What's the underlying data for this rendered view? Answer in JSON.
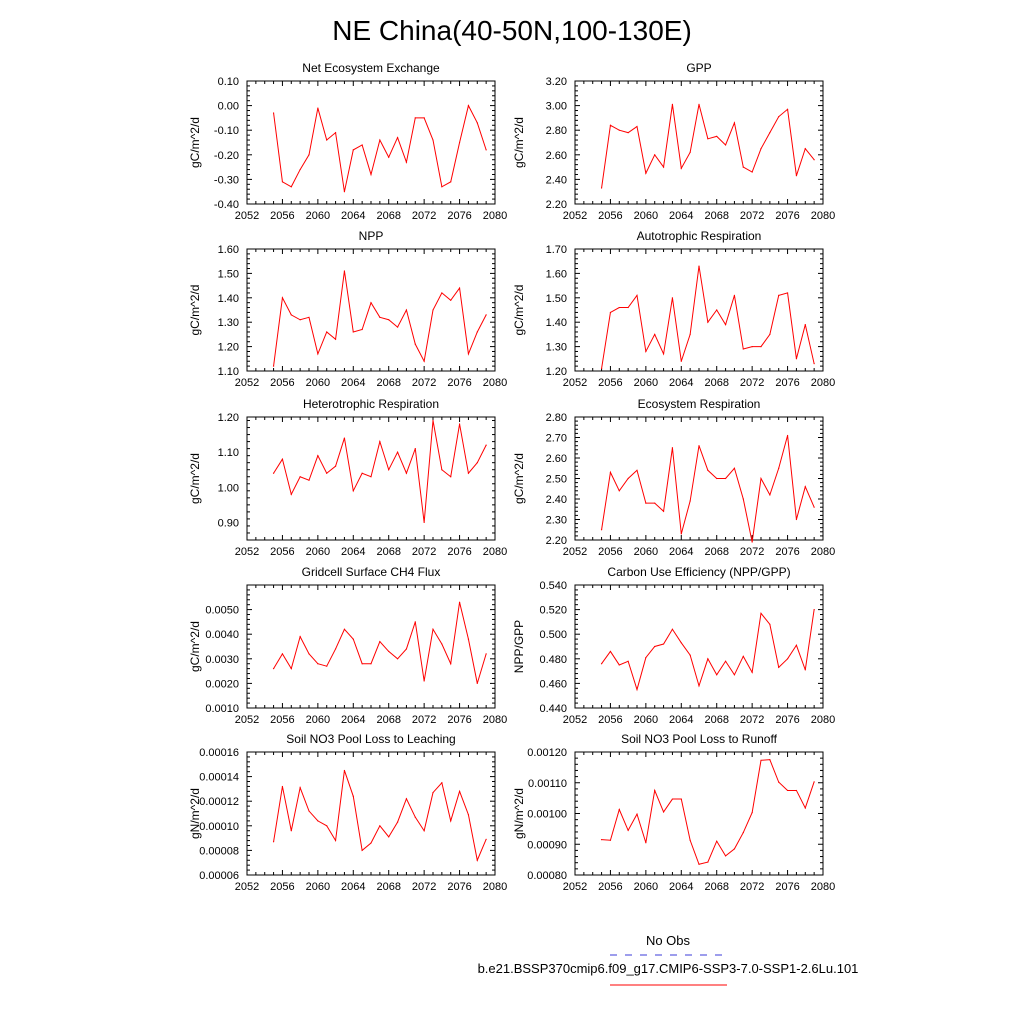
{
  "title": "NE China(40-50N,100-130E)",
  "legend": {
    "position": "bottom-right",
    "entries": [
      {
        "label": "No Obs",
        "color": "#3b3bd9",
        "dash": true
      },
      {
        "label": "b.e21.BSSP370cmip6.f09_g17.CMIP6-SSP3-7.0-SSP1-2.6Lu.101",
        "color": "#ff0000",
        "dash": false
      }
    ]
  },
  "series_color": "#ff0000",
  "chart_data": [
    {
      "type": "line",
      "title": "Net Ecosystem Exchange",
      "ylabel": "gC/m^2/d",
      "xlim": [
        2052,
        2080
      ],
      "ylim": [
        -0.4,
        0.1
      ],
      "xticks": [
        "2052",
        "2056",
        "2060",
        "2064",
        "2068",
        "2072",
        "2076",
        "2080"
      ],
      "yticks": [
        "-0.40",
        "-0.30",
        "-0.20",
        "-0.10",
        "0.00",
        "0.10"
      ],
      "x": [
        2055,
        2056,
        2057,
        2058,
        2059,
        2060,
        2061,
        2062,
        2063,
        2064,
        2065,
        2066,
        2067,
        2068,
        2069,
        2070,
        2071,
        2072,
        2073,
        2074,
        2075,
        2076,
        2077,
        2078,
        2079
      ],
      "values": [
        -0.03,
        -0.31,
        -0.33,
        -0.26,
        -0.2,
        -0.01,
        -0.14,
        -0.11,
        -0.35,
        -0.18,
        -0.16,
        -0.28,
        -0.14,
        -0.21,
        -0.13,
        -0.23,
        -0.05,
        -0.05,
        -0.14,
        -0.33,
        -0.31,
        -0.15,
        0.0,
        -0.07,
        -0.18
      ]
    },
    {
      "type": "line",
      "title": "GPP",
      "ylabel": "gC/m^2/d",
      "xlim": [
        2052,
        2080
      ],
      "ylim": [
        2.2,
        3.2
      ],
      "xticks": [
        "2052",
        "2056",
        "2060",
        "2064",
        "2068",
        "2072",
        "2076",
        "2080"
      ],
      "yticks": [
        "2.20",
        "2.40",
        "2.60",
        "2.80",
        "3.00",
        "3.20"
      ],
      "x": [
        2055,
        2056,
        2057,
        2058,
        2059,
        2060,
        2061,
        2062,
        2063,
        2064,
        2065,
        2066,
        2067,
        2068,
        2069,
        2070,
        2071,
        2072,
        2073,
        2074,
        2075,
        2076,
        2077,
        2078,
        2079
      ],
      "values": [
        2.33,
        2.84,
        2.8,
        2.78,
        2.83,
        2.45,
        2.6,
        2.5,
        3.01,
        2.49,
        2.62,
        3.01,
        2.73,
        2.75,
        2.68,
        2.86,
        2.5,
        2.46,
        2.65,
        2.78,
        2.91,
        2.97,
        2.43,
        2.65,
        2.56
      ]
    },
    {
      "type": "line",
      "title": "NPP",
      "ylabel": "gC/m^2/d",
      "xlim": [
        2052,
        2080
      ],
      "ylim": [
        1.1,
        1.6
      ],
      "xticks": [
        "2052",
        "2056",
        "2060",
        "2064",
        "2068",
        "2072",
        "2076",
        "2080"
      ],
      "yticks": [
        "1.10",
        "1.20",
        "1.30",
        "1.40",
        "1.50",
        "1.60"
      ],
      "x": [
        2055,
        2056,
        2057,
        2058,
        2059,
        2060,
        2061,
        2062,
        2063,
        2064,
        2065,
        2066,
        2067,
        2068,
        2069,
        2070,
        2071,
        2072,
        2073,
        2074,
        2075,
        2076,
        2077,
        2078,
        2079
      ],
      "values": [
        1.12,
        1.4,
        1.33,
        1.31,
        1.32,
        1.17,
        1.26,
        1.23,
        1.51,
        1.26,
        1.27,
        1.38,
        1.32,
        1.31,
        1.28,
        1.35,
        1.21,
        1.14,
        1.35,
        1.42,
        1.39,
        1.44,
        1.17,
        1.26,
        1.33
      ]
    },
    {
      "type": "line",
      "title": "Autotrophic Respiration",
      "ylabel": "gC/m^2/d",
      "xlim": [
        2052,
        2080
      ],
      "ylim": [
        1.2,
        1.7
      ],
      "xticks": [
        "2052",
        "2056",
        "2060",
        "2064",
        "2068",
        "2072",
        "2076",
        "2080"
      ],
      "yticks": [
        "1.20",
        "1.30",
        "1.40",
        "1.50",
        "1.60",
        "1.70"
      ],
      "x": [
        2055,
        2056,
        2057,
        2058,
        2059,
        2060,
        2061,
        2062,
        2063,
        2064,
        2065,
        2066,
        2067,
        2068,
        2069,
        2070,
        2071,
        2072,
        2073,
        2074,
        2075,
        2076,
        2077,
        2078,
        2079
      ],
      "values": [
        1.21,
        1.44,
        1.46,
        1.46,
        1.51,
        1.28,
        1.35,
        1.27,
        1.5,
        1.24,
        1.35,
        1.63,
        1.4,
        1.45,
        1.39,
        1.51,
        1.29,
        1.3,
        1.3,
        1.35,
        1.51,
        1.52,
        1.25,
        1.39,
        1.23
      ]
    },
    {
      "type": "line",
      "title": "Heterotrophic Respiration",
      "ylabel": "gC/m^2/d",
      "xlim": [
        2052,
        2080
      ],
      "ylim": [
        0.85,
        1.2
      ],
      "xticks": [
        "2052",
        "2056",
        "2060",
        "2064",
        "2068",
        "2072",
        "2076",
        "2080"
      ],
      "yticks": [
        "0.90",
        "1.00",
        "1.10",
        "1.20"
      ],
      "x": [
        2055,
        2056,
        2057,
        2058,
        2059,
        2060,
        2061,
        2062,
        2063,
        2064,
        2065,
        2066,
        2067,
        2068,
        2069,
        2070,
        2071,
        2072,
        2073,
        2074,
        2075,
        2076,
        2077,
        2078,
        2079
      ],
      "values": [
        1.04,
        1.08,
        0.98,
        1.03,
        1.02,
        1.09,
        1.04,
        1.06,
        1.14,
        0.99,
        1.04,
        1.03,
        1.13,
        1.05,
        1.1,
        1.04,
        1.11,
        0.9,
        1.19,
        1.05,
        1.03,
        1.18,
        1.04,
        1.07,
        1.12
      ]
    },
    {
      "type": "line",
      "title": "Ecosystem Respiration",
      "ylabel": "gC/m^2/d",
      "xlim": [
        2052,
        2080
      ],
      "ylim": [
        2.2,
        2.8
      ],
      "xticks": [
        "2052",
        "2056",
        "2060",
        "2064",
        "2068",
        "2072",
        "2076",
        "2080"
      ],
      "yticks": [
        "2.20",
        "2.30",
        "2.40",
        "2.50",
        "2.60",
        "2.70",
        "2.80"
      ],
      "x": [
        2055,
        2056,
        2057,
        2058,
        2059,
        2060,
        2061,
        2062,
        2063,
        2064,
        2065,
        2066,
        2067,
        2068,
        2069,
        2070,
        2071,
        2072,
        2073,
        2074,
        2075,
        2076,
        2077,
        2078,
        2079
      ],
      "values": [
        2.25,
        2.53,
        2.44,
        2.5,
        2.54,
        2.38,
        2.38,
        2.34,
        2.65,
        2.23,
        2.39,
        2.66,
        2.54,
        2.5,
        2.5,
        2.55,
        2.4,
        2.19,
        2.5,
        2.42,
        2.55,
        2.71,
        2.3,
        2.46,
        2.36
      ]
    },
    {
      "type": "line",
      "title": "Gridcell Surface CH4 Flux",
      "ylabel": "gC/m^2/d",
      "xlim": [
        2052,
        2080
      ],
      "ylim": [
        0.001,
        0.006
      ],
      "xticks": [
        "2052",
        "2056",
        "2060",
        "2064",
        "2068",
        "2072",
        "2076",
        "2080"
      ],
      "yticks": [
        "0.0010",
        "0.0020",
        "0.0030",
        "0.0040",
        "0.0050"
      ],
      "x": [
        2055,
        2056,
        2057,
        2058,
        2059,
        2060,
        2061,
        2062,
        2063,
        2064,
        2065,
        2066,
        2067,
        2068,
        2069,
        2070,
        2071,
        2072,
        2073,
        2074,
        2075,
        2076,
        2077,
        2078,
        2079
      ],
      "values": [
        0.0026,
        0.0032,
        0.0026,
        0.0039,
        0.0032,
        0.0028,
        0.0027,
        0.0034,
        0.0042,
        0.0038,
        0.0028,
        0.0028,
        0.0037,
        0.0033,
        0.003,
        0.0034,
        0.0045,
        0.0021,
        0.0042,
        0.0036,
        0.0028,
        0.0053,
        0.0038,
        0.002,
        0.0032
      ]
    },
    {
      "type": "line",
      "title": "Carbon Use Efficiency (NPP/GPP)",
      "ylabel": "NPP/GPP",
      "xlim": [
        2052,
        2080
      ],
      "ylim": [
        0.44,
        0.54
      ],
      "xticks": [
        "2052",
        "2056",
        "2060",
        "2064",
        "2068",
        "2072",
        "2076",
        "2080"
      ],
      "yticks": [
        "0.440",
        "0.460",
        "0.480",
        "0.500",
        "0.520",
        "0.540"
      ],
      "x": [
        2055,
        2056,
        2057,
        2058,
        2059,
        2060,
        2061,
        2062,
        2063,
        2064,
        2065,
        2066,
        2067,
        2068,
        2069,
        2070,
        2071,
        2072,
        2073,
        2074,
        2075,
        2076,
        2077,
        2078,
        2079
      ],
      "values": [
        0.476,
        0.486,
        0.475,
        0.478,
        0.455,
        0.481,
        0.49,
        0.492,
        0.504,
        0.493,
        0.483,
        0.458,
        0.48,
        0.467,
        0.478,
        0.467,
        0.482,
        0.469,
        0.517,
        0.508,
        0.473,
        0.48,
        0.491,
        0.471,
        0.52
      ]
    },
    {
      "type": "line",
      "title": "Soil NO3 Pool Loss to Leaching",
      "ylabel": "gN/m^2/d",
      "xlim": [
        2052,
        2080
      ],
      "ylim": [
        6e-05,
        0.00016
      ],
      "xticks": [
        "2052",
        "2056",
        "2060",
        "2064",
        "2068",
        "2072",
        "2076",
        "2080"
      ],
      "yticks": [
        "0.00006",
        "0.00008",
        "0.00010",
        "0.00012",
        "0.00014",
        "0.00016"
      ],
      "x": [
        2055,
        2056,
        2057,
        2058,
        2059,
        2060,
        2061,
        2062,
        2063,
        2064,
        2065,
        2066,
        2067,
        2068,
        2069,
        2070,
        2071,
        2072,
        2073,
        2074,
        2075,
        2076,
        2077,
        2078,
        2079
      ],
      "values": [
        8.7e-05,
        0.000132,
        9.6e-05,
        0.000131,
        0.000112,
        0.000104,
        0.0001,
        8.8e-05,
        0.000145,
        0.000124,
        8e-05,
        8.6e-05,
        0.0001,
        9.1e-05,
        0.000103,
        0.000122,
        0.000107,
        9.6e-05,
        0.000127,
        0.000135,
        0.000104,
        0.000128,
        0.000109,
        7.2e-05,
        8.9e-05
      ]
    },
    {
      "type": "line",
      "title": "Soil NO3 Pool Loss to Runoff",
      "ylabel": "gN/m^2/d",
      "xlim": [
        2052,
        2080
      ],
      "ylim": [
        0.0008,
        0.0012
      ],
      "xticks": [
        "2052",
        "2056",
        "2060",
        "2064",
        "2068",
        "2072",
        "2076",
        "2080"
      ],
      "yticks": [
        "0.00080",
        "0.00090",
        "0.00100",
        "0.00110",
        "0.00120"
      ],
      "x": [
        2055,
        2056,
        2057,
        2058,
        2059,
        2060,
        2061,
        2062,
        2063,
        2064,
        2065,
        2066,
        2067,
        2068,
        2069,
        2070,
        2071,
        2072,
        2073,
        2074,
        2075,
        2076,
        2077,
        2078,
        2079
      ],
      "values": [
        0.000915,
        0.000913,
        0.001013,
        0.000945,
        0.000998,
        0.000905,
        0.001075,
        0.001005,
        0.001047,
        0.001047,
        0.000913,
        0.000835,
        0.000842,
        0.00091,
        0.000862,
        0.000885,
        0.000938,
        0.001003,
        0.001173,
        0.001175,
        0.001102,
        0.001075,
        0.001075,
        0.001018,
        0.001103
      ]
    }
  ]
}
